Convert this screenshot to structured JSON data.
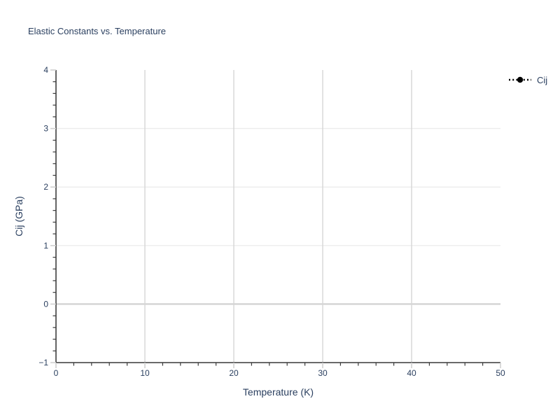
{
  "colors": {
    "background": "#ffffff",
    "text": "#2a3f5f",
    "axis_line": "#111111",
    "grid_horizontal": "#ececec",
    "grid_vertical": "#d6d6d6",
    "zero_line": "#d2d2d2",
    "tick_major": "#d0d0d0",
    "tick_minor": "#3a3a3a",
    "series_cij": "#000000"
  },
  "legend": {
    "position": "top-right-outside",
    "items": [
      {
        "label": "Cij",
        "color": "#000000",
        "line_style": "dotted",
        "marker": "circle"
      }
    ]
  },
  "chart_data": {
    "type": "line",
    "title": "Elastic Constants vs. Temperature",
    "xlabel": "Temperature (K)",
    "ylabel": "Cij (GPa)",
    "xlim": [
      0,
      50
    ],
    "ylim": [
      -1,
      4
    ],
    "x_ticks": [
      0,
      10,
      20,
      30,
      40,
      50
    ],
    "y_ticks": [
      -1,
      0,
      1,
      2,
      3,
      4
    ],
    "x_minor_step": 2,
    "y_minor_step": 0.2,
    "grid": true,
    "zeroline": true,
    "legend_position": "top-right-outside",
    "series": [
      {
        "name": "Cij",
        "color": "#000000",
        "line_style": "dotted",
        "marker": "circle",
        "x": [],
        "y": []
      }
    ]
  }
}
